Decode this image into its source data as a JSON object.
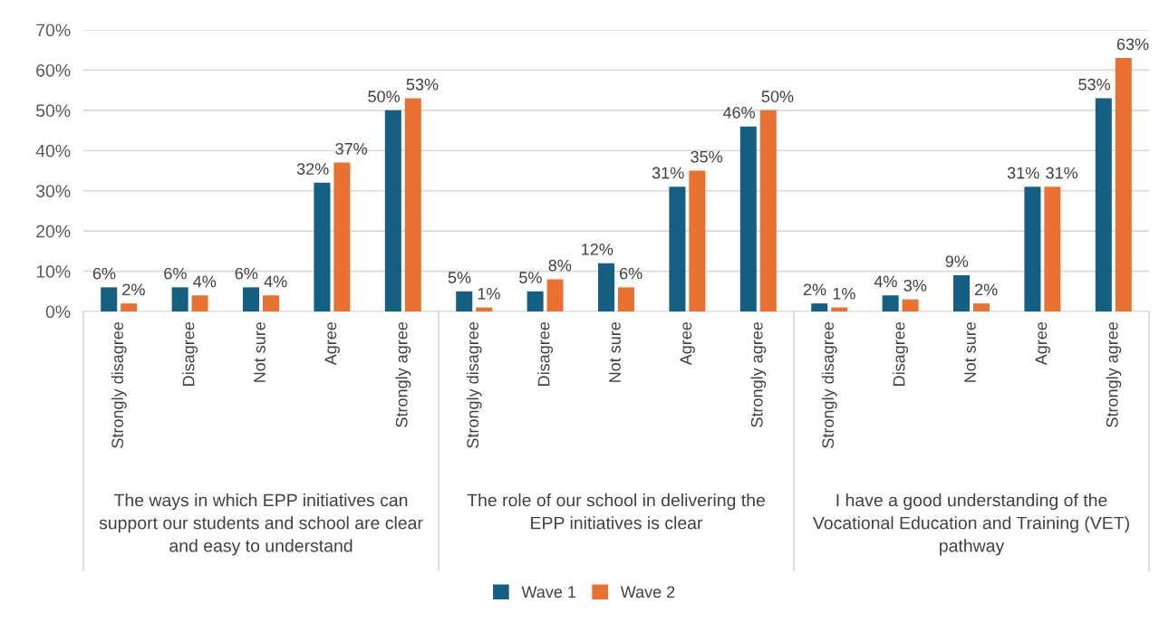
{
  "chart_data": {
    "type": "bar",
    "categories": [
      "Strongly disagree",
      "Disagree",
      "Not sure",
      "Agree",
      "Strongly agree",
      "Strongly disagree",
      "Disagree",
      "Not sure",
      "Agree",
      "Strongly agree",
      "Strongly disagree",
      "Disagree",
      "Not sure",
      "Agree",
      "Strongly agree"
    ],
    "annotations": [
      "The ways in which EPP initiatives can support our students and school are clear and easy to understand",
      "The role of our school in delivering the EPP initiatives is clear",
      "I have a good understanding of the Vocational Education and Training (VET) pathway"
    ],
    "series": [
      {
        "name": "Wave 1",
        "color": "#156082",
        "values": [
          6,
          6,
          6,
          32,
          50,
          5,
          5,
          12,
          31,
          46,
          2,
          4,
          9,
          31,
          53
        ],
        "value_labels": [
          "6%",
          "6%",
          "6%",
          "32%",
          "50%",
          "5%",
          "5%",
          "12%",
          "31%",
          "46%",
          "2%",
          "4%",
          "9%",
          "31%",
          "53%"
        ]
      },
      {
        "name": "Wave 2",
        "color": "#e97132",
        "values": [
          2,
          4,
          4,
          37,
          53,
          1,
          8,
          6,
          35,
          50,
          1,
          3,
          2,
          31,
          63
        ],
        "value_labels": [
          "2%",
          "4%",
          "4%",
          "37%",
          "53%",
          "1%",
          "8%",
          "6%",
          "35%",
          "50%",
          "1%",
          "3%",
          "2%",
          "31%",
          "63%"
        ]
      }
    ],
    "ylim": [
      0,
      70
    ],
    "yticks": [
      {
        "value": 0,
        "label": "0%"
      },
      {
        "value": 10,
        "label": "10%"
      },
      {
        "value": 20,
        "label": "20%"
      },
      {
        "value": 30,
        "label": "30%"
      },
      {
        "value": 40,
        "label": "40%"
      },
      {
        "value": 50,
        "label": "50%"
      },
      {
        "value": 60,
        "label": "60%"
      },
      {
        "value": 70,
        "label": "70%"
      }
    ],
    "grid": "y",
    "legend": "bottom"
  }
}
